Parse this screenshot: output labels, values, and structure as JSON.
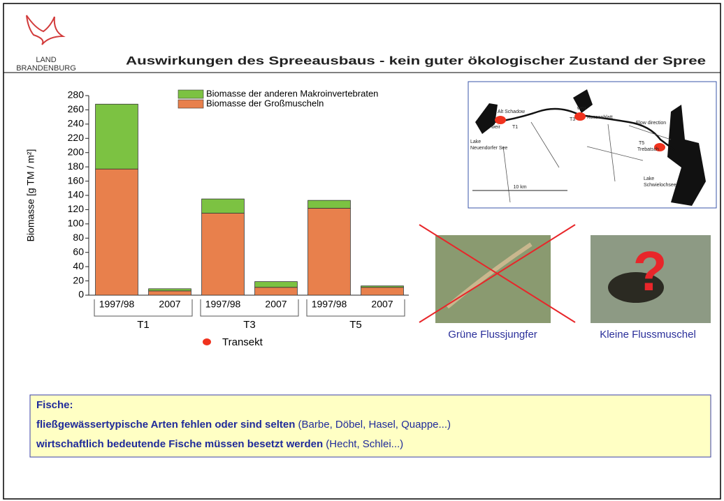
{
  "header": {
    "logo_line1": "LAND",
    "logo_line2": "BRANDENBURG",
    "title": "Auswirkungen des Spreeausbaus  -  kein guter ökologischer Zustand der Spree"
  },
  "chart_data": {
    "type": "bar",
    "stacked": true,
    "ylabel": "Biomasse [g TM / m²]",
    "categories": [
      "1997/98",
      "2007",
      "1997/98",
      "2007",
      "1997/98",
      "2007"
    ],
    "groups": [
      "T1",
      "T3",
      "T5"
    ],
    "series": [
      {
        "name": "Biomasse der Großmuscheln",
        "color": "#e8804c",
        "values": [
          177,
          6,
          115,
          11,
          122,
          11
        ]
      },
      {
        "name": "Biomasse der anderen Makroinvertebraten",
        "color": "#7cc242",
        "values": [
          91,
          3,
          20,
          8,
          11,
          2
        ]
      }
    ],
    "ylim": [
      0,
      280
    ],
    "yticks": [
      0,
      20,
      40,
      60,
      80,
      100,
      120,
      140,
      160,
      180,
      200,
      220,
      240,
      260,
      280
    ],
    "marker_legend": {
      "name": "Transekt",
      "color": "#f0321e"
    }
  },
  "map": {
    "labels": [
      "Alt Schadow",
      "weir",
      "T1",
      "weir",
      "T3",
      "Kossenblatt",
      "Flow direction",
      "T5",
      "Trebatsch",
      "Lake",
      "Neuendorfer See",
      "10 km",
      "Lake",
      "Schwielochsee"
    ]
  },
  "photos": [
    {
      "caption": "Grüne Flussjungfer"
    },
    {
      "caption": "Kleine Flussmuschel",
      "mark": "?"
    }
  ],
  "box": {
    "heading": "Fische:",
    "line1_bold": "fließgewässertypische Arten fehlen oder sind selten",
    "line1_rest": " (Barbe, Döbel, Hasel, Quappe...)",
    "line2_bold": "wirtschaftlich bedeutende Fische müssen besetzt werden",
    "line2_rest": " (Hecht, Schlei...)"
  }
}
